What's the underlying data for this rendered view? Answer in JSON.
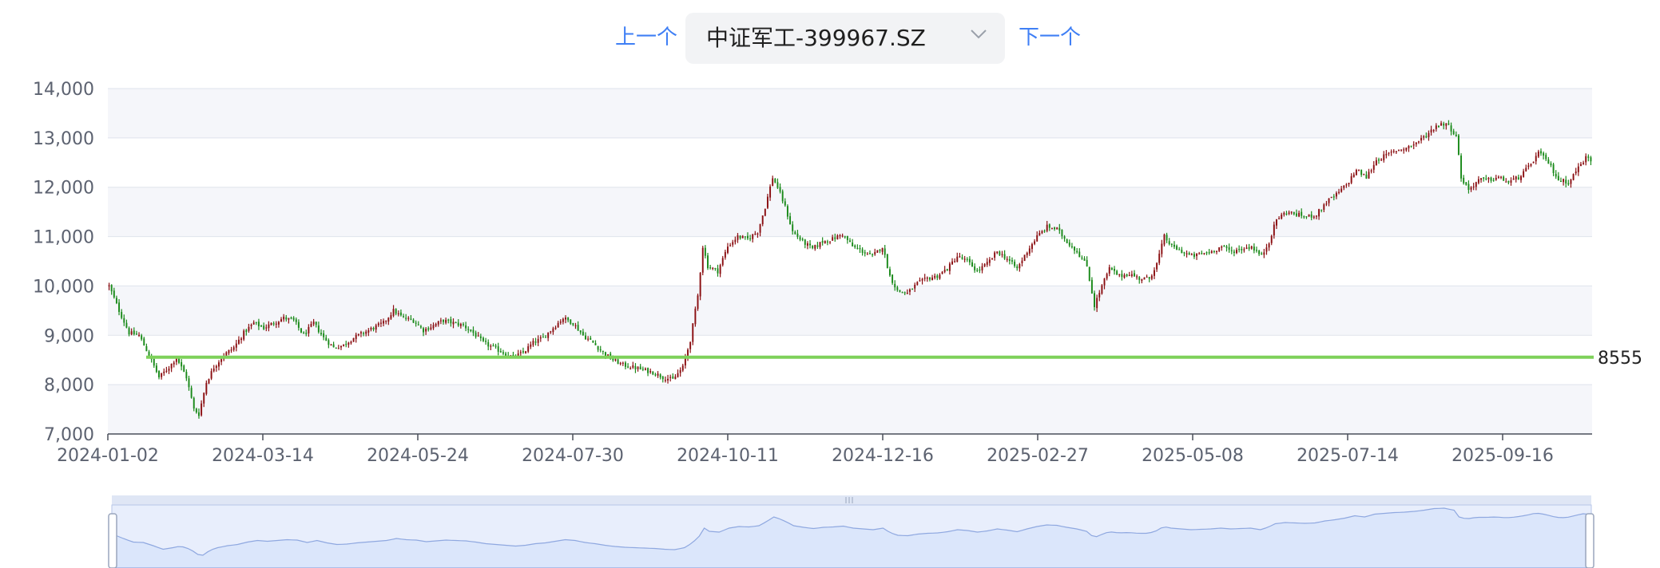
{
  "nav": {
    "prev_label": "上一个",
    "next_label": "下一个"
  },
  "selector": {
    "value": "中证军工-399967.SZ"
  },
  "colors": {
    "up": "#8b0f12",
    "down": "#1a8a1a",
    "ref_line": "#7ed15a",
    "zoom_fill": "#dbe6fb",
    "zoom_line": "#8fa8e0"
  },
  "chart_data": {
    "type": "candlestick",
    "ylim": [
      7000,
      14000
    ],
    "y_ticks": [
      "14,000",
      "13,000",
      "12,000",
      "11,000",
      "10,000",
      "9,000",
      "8,000",
      "7,000"
    ],
    "x_ticks": [
      "2024-01-02",
      "2024-03-14",
      "2024-05-24",
      "2024-07-30",
      "2024-10-11",
      "2024-12-16",
      "2025-02-27",
      "2025-05-08",
      "2025-07-14",
      "2025-09-16"
    ],
    "reference_line": {
      "value": 8555,
      "label": "8555"
    },
    "close_path": [
      [
        0,
        10000
      ],
      [
        4,
        9500
      ],
      [
        8,
        9050
      ],
      [
        12,
        9000
      ],
      [
        16,
        8600
      ],
      [
        20,
        8150
      ],
      [
        24,
        8350
      ],
      [
        27,
        8550
      ],
      [
        31,
        8150
      ],
      [
        34,
        7500
      ],
      [
        36,
        7400
      ],
      [
        39,
        8050
      ],
      [
        42,
        8350
      ],
      [
        46,
        8600
      ],
      [
        50,
        8750
      ],
      [
        54,
        9050
      ],
      [
        58,
        9250
      ],
      [
        62,
        9150
      ],
      [
        66,
        9250
      ],
      [
        70,
        9350
      ],
      [
        74,
        9300
      ],
      [
        78,
        9000
      ],
      [
        82,
        9250
      ],
      [
        86,
        8950
      ],
      [
        90,
        8750
      ],
      [
        94,
        8800
      ],
      [
        98,
        8950
      ],
      [
        102,
        9050
      ],
      [
        106,
        9150
      ],
      [
        110,
        9250
      ],
      [
        114,
        9500
      ],
      [
        118,
        9350
      ],
      [
        122,
        9300
      ],
      [
        126,
        9100
      ],
      [
        130,
        9200
      ],
      [
        134,
        9300
      ],
      [
        138,
        9250
      ],
      [
        142,
        9200
      ],
      [
        146,
        9050
      ],
      [
        150,
        8850
      ],
      [
        154,
        8750
      ],
      [
        158,
        8650
      ],
      [
        162,
        8550
      ],
      [
        166,
        8650
      ],
      [
        170,
        8850
      ],
      [
        174,
        8950
      ],
      [
        178,
        9150
      ],
      [
        182,
        9350
      ],
      [
        186,
        9250
      ],
      [
        190,
        9000
      ],
      [
        194,
        8850
      ],
      [
        198,
        8650
      ],
      [
        202,
        8500
      ],
      [
        206,
        8400
      ],
      [
        210,
        8350
      ],
      [
        214,
        8300
      ],
      [
        218,
        8250
      ],
      [
        222,
        8150
      ],
      [
        226,
        8100
      ],
      [
        230,
        8350
      ],
      [
        233,
        8900
      ],
      [
        236,
        9800
      ],
      [
        238,
        10800
      ],
      [
        240,
        10400
      ],
      [
        244,
        10300
      ],
      [
        248,
        10800
      ],
      [
        252,
        11000
      ],
      [
        256,
        10950
      ],
      [
        260,
        11100
      ],
      [
        263,
        11600
      ],
      [
        266,
        12200
      ],
      [
        268,
        12000
      ],
      [
        271,
        11600
      ],
      [
        274,
        11100
      ],
      [
        278,
        10900
      ],
      [
        282,
        10750
      ],
      [
        286,
        10900
      ],
      [
        290,
        10950
      ],
      [
        294,
        11050
      ],
      [
        298,
        10800
      ],
      [
        302,
        10700
      ],
      [
        306,
        10600
      ],
      [
        310,
        10800
      ],
      [
        313,
        10200
      ],
      [
        316,
        9900
      ],
      [
        320,
        9850
      ],
      [
        324,
        10050
      ],
      [
        328,
        10150
      ],
      [
        332,
        10200
      ],
      [
        336,
        10350
      ],
      [
        340,
        10600
      ],
      [
        344,
        10500
      ],
      [
        348,
        10300
      ],
      [
        352,
        10450
      ],
      [
        356,
        10700
      ],
      [
        360,
        10550
      ],
      [
        364,
        10350
      ],
      [
        368,
        10700
      ],
      [
        372,
        11000
      ],
      [
        376,
        11200
      ],
      [
        380,
        11150
      ],
      [
        384,
        10900
      ],
      [
        388,
        10700
      ],
      [
        392,
        10400
      ],
      [
        395,
        9600
      ],
      [
        398,
        10000
      ],
      [
        401,
        10350
      ],
      [
        405,
        10200
      ],
      [
        409,
        10250
      ],
      [
        413,
        10150
      ],
      [
        417,
        10150
      ],
      [
        420,
        10450
      ],
      [
        423,
        11000
      ],
      [
        426,
        10800
      ],
      [
        430,
        10700
      ],
      [
        434,
        10600
      ],
      [
        438,
        10650
      ],
      [
        442,
        10700
      ],
      [
        446,
        10800
      ],
      [
        450,
        10700
      ],
      [
        454,
        10750
      ],
      [
        458,
        10800
      ],
      [
        462,
        10600
      ],
      [
        465,
        10900
      ],
      [
        468,
        11350
      ],
      [
        472,
        11500
      ],
      [
        476,
        11450
      ],
      [
        480,
        11400
      ],
      [
        484,
        11450
      ],
      [
        488,
        11700
      ],
      [
        492,
        11850
      ],
      [
        496,
        12050
      ],
      [
        500,
        12350
      ],
      [
        504,
        12200
      ],
      [
        508,
        12550
      ],
      [
        512,
        12650
      ],
      [
        516,
        12750
      ],
      [
        520,
        12800
      ],
      [
        524,
        12900
      ],
      [
        528,
        13050
      ],
      [
        532,
        13250
      ],
      [
        536,
        13300
      ],
      [
        540,
        13050
      ],
      [
        542,
        12200
      ],
      [
        545,
        11950
      ],
      [
        549,
        12150
      ],
      [
        553,
        12150
      ],
      [
        557,
        12200
      ],
      [
        561,
        12100
      ],
      [
        565,
        12200
      ],
      [
        569,
        12400
      ],
      [
        573,
        12700
      ],
      [
        577,
        12500
      ],
      [
        581,
        12150
      ],
      [
        585,
        12100
      ],
      [
        589,
        12400
      ],
      [
        592,
        12600
      ],
      [
        594,
        12550
      ]
    ]
  }
}
